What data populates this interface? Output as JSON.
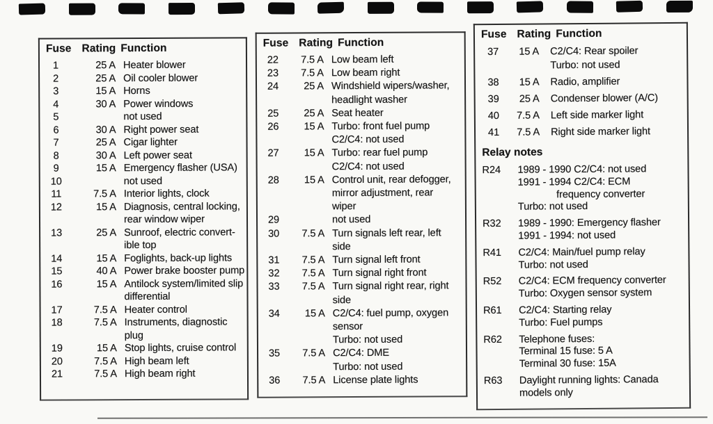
{
  "tables": [
    {
      "id": "fuses-1-21",
      "header": {
        "fuse": "Fuse",
        "rating": "Rating",
        "function": "Function"
      },
      "fuses": [
        {
          "no": "1",
          "rating": "25 A",
          "lines": [
            "Heater blower"
          ]
        },
        {
          "no": "2",
          "rating": "25 A",
          "lines": [
            "Oil cooler blower"
          ]
        },
        {
          "no": "3",
          "rating": "15 A",
          "lines": [
            "Horns"
          ]
        },
        {
          "no": "4",
          "rating": "30 A",
          "lines": [
            "Power windows"
          ]
        },
        {
          "no": "5",
          "rating": "",
          "lines": [
            "not used"
          ]
        },
        {
          "no": "6",
          "rating": "30 A",
          "lines": [
            "Right power seat"
          ]
        },
        {
          "no": "7",
          "rating": "25 A",
          "lines": [
            "Cigar lighter"
          ]
        },
        {
          "no": "8",
          "rating": "30 A",
          "lines": [
            "Left power seat"
          ]
        },
        {
          "no": "9",
          "rating": "15 A",
          "lines": [
            "Emergency flasher (USA)"
          ]
        },
        {
          "no": "10",
          "rating": "",
          "lines": [
            "not used"
          ]
        },
        {
          "no": "11",
          "rating": "7.5 A",
          "lines": [
            "Interior lights, clock"
          ]
        },
        {
          "no": "12",
          "rating": "15 A",
          "lines": [
            "Diagnosis, central locking,",
            "rear window wiper"
          ]
        },
        {
          "no": "13",
          "rating": "25 A",
          "lines": [
            "Sunroof, electric convert-",
            "ible top"
          ]
        },
        {
          "no": "14",
          "rating": "15 A",
          "lines": [
            "Foglights, back-up lights"
          ]
        },
        {
          "no": "15",
          "rating": "40 A",
          "lines": [
            "Power brake booster pump"
          ]
        },
        {
          "no": "16",
          "rating": "15 A",
          "lines": [
            "Antilock system/limited slip",
            "differential"
          ]
        },
        {
          "no": "17",
          "rating": "7.5 A",
          "lines": [
            "Heater control"
          ]
        },
        {
          "no": "18",
          "rating": "7.5 A",
          "lines": [
            "Instruments, diagnostic",
            "plug"
          ]
        },
        {
          "no": "19",
          "rating": "15 A",
          "lines": [
            "Stop lights, cruise control"
          ]
        },
        {
          "no": "20",
          "rating": "7.5 A",
          "lines": [
            "High beam left"
          ]
        },
        {
          "no": "21",
          "rating": "7.5 A",
          "lines": [
            "High beam right"
          ]
        }
      ]
    },
    {
      "id": "fuses-22-36",
      "header": {
        "fuse": "Fuse",
        "rating": "Rating",
        "function": "Function"
      },
      "fuses": [
        {
          "no": "22",
          "rating": "7.5 A",
          "lines": [
            "Low beam left"
          ]
        },
        {
          "no": "23",
          "rating": "7.5 A",
          "lines": [
            "Low beam right"
          ]
        },
        {
          "no": "24",
          "rating": "25 A",
          "lines": [
            "Windshield wipers/washer,",
            "headlight washer"
          ]
        },
        {
          "no": "25",
          "rating": "25 A",
          "lines": [
            "Seat heater"
          ]
        },
        {
          "no": "26",
          "rating": "15 A",
          "lines": [
            "Turbo: front fuel pump",
            "C2/C4: not used"
          ]
        },
        {
          "no": "27",
          "rating": "15 A",
          "lines": [
            "Turbo: rear fuel pump",
            "C2/C4: not used"
          ]
        },
        {
          "no": "28",
          "rating": "15 A",
          "lines": [
            "Control unit, rear defogger,",
            "mirror adjustment, rear",
            "wiper"
          ]
        },
        {
          "no": "29",
          "rating": "",
          "lines": [
            "not used"
          ]
        },
        {
          "no": "30",
          "rating": "7.5 A",
          "lines": [
            "Turn signals left rear, left",
            "side"
          ]
        },
        {
          "no": "31",
          "rating": "7.5 A",
          "lines": [
            "Turn signal left front"
          ]
        },
        {
          "no": "32",
          "rating": "7.5 A",
          "lines": [
            "Turn signal right front"
          ]
        },
        {
          "no": "33",
          "rating": "7.5 A",
          "lines": [
            "Turn signal right rear, right",
            "side"
          ]
        },
        {
          "no": "34",
          "rating": "15 A",
          "lines": [
            "C2/C4: fuel pump, oxygen",
            "sensor",
            "Turbo: not used"
          ]
        },
        {
          "no": "35",
          "rating": "7.5 A",
          "lines": [
            "C2/C4: DME",
            "Turbo: not used"
          ]
        },
        {
          "no": "36",
          "rating": "7.5 A",
          "lines": [
            "License plate lights"
          ]
        }
      ]
    },
    {
      "id": "fuses-37-41",
      "header": {
        "fuse": "Fuse",
        "rating": "Rating",
        "function": "Function"
      },
      "fuses": [
        {
          "no": "37",
          "rating": "15 A",
          "lines": [
            "C2/C4: Rear spoiler",
            "Turbo: not used"
          ]
        },
        {
          "no": "38",
          "rating": "15 A",
          "lines": [
            "Radio, amplifier"
          ]
        },
        {
          "no": "39",
          "rating": "25 A",
          "lines": [
            "Condenser blower (A/C)"
          ]
        },
        {
          "no": "40",
          "rating": "7.5 A",
          "lines": [
            "Left side marker light"
          ]
        },
        {
          "no": "41",
          "rating": "7.5 A",
          "lines": [
            "Right side marker light"
          ]
        }
      ],
      "relay_section": {
        "title": "Relay notes",
        "relays": [
          {
            "no": "R24",
            "lines": [
              "1989 - 1990 C2/C4: not used",
              "1991 - 1994 C2/C4: ECM",
              "              frequency converter",
              "Turbo: not used"
            ]
          },
          {
            "no": "R32",
            "lines": [
              "1989 - 1990: Emergency flasher",
              "1991 - 1994: not used"
            ]
          },
          {
            "no": "R41",
            "lines": [
              "C2/C4: Main/fuel pump relay",
              "Turbo: not used"
            ]
          },
          {
            "no": "R52",
            "lines": [
              "C2/C4: ECM frequency converter",
              "Turbo: Oxygen sensor system"
            ]
          },
          {
            "no": "R61",
            "lines": [
              "C2/C4: Starting relay",
              "Turbo: Fuel pumps"
            ]
          },
          {
            "no": "R62",
            "lines": [
              "Telephone fuses:",
              "Terminal 15 fuse: 5 A",
              "Terminal 30 fuse: 15A"
            ]
          },
          {
            "no": "R63",
            "lines": [
              "Daylight running lights: Canada",
              "models only"
            ]
          }
        ]
      }
    }
  ]
}
